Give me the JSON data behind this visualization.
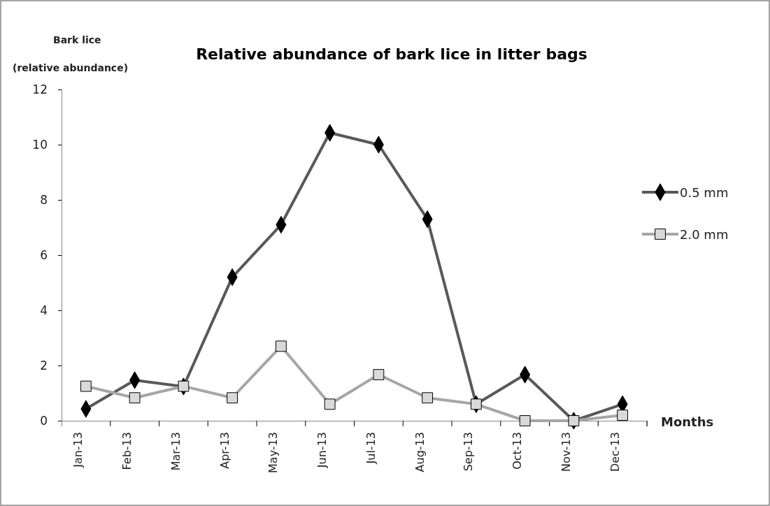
{
  "chart_data": {
    "type": "line",
    "title": "Relative abundance of bark lice in litter bags",
    "ylabel": "Bark lice\n(relative abundance)",
    "xlabel": "Months",
    "categories": [
      "Jan-13",
      "Feb-13",
      "Mar-13",
      "Apr-13",
      "May-13",
      "Jun-13",
      "Jul-13",
      "Aug-13",
      "Sep-13",
      "Oct-13",
      "Nov-13",
      "Dec-13"
    ],
    "series": [
      {
        "name": "0.5 mm",
        "color": "#595959",
        "marker": "diamond",
        "values": [
          0.43,
          1.47,
          1.24,
          5.2,
          7.1,
          10.43,
          10.0,
          7.3,
          0.6,
          1.67,
          0,
          0.6
        ]
      },
      {
        "name": "2.0 mm",
        "color": "#a6a6a6",
        "marker": "square",
        "values": [
          1.25,
          0.83,
          1.25,
          0.83,
          2.7,
          0.6,
          1.67,
          0.83,
          0.6,
          0,
          0,
          0.2
        ]
      }
    ],
    "ylim": [
      0,
      12
    ],
    "yticks": [
      0,
      2,
      4,
      6,
      8,
      10,
      12
    ],
    "grid": false,
    "legend": "right",
    "line_style": "solid"
  }
}
